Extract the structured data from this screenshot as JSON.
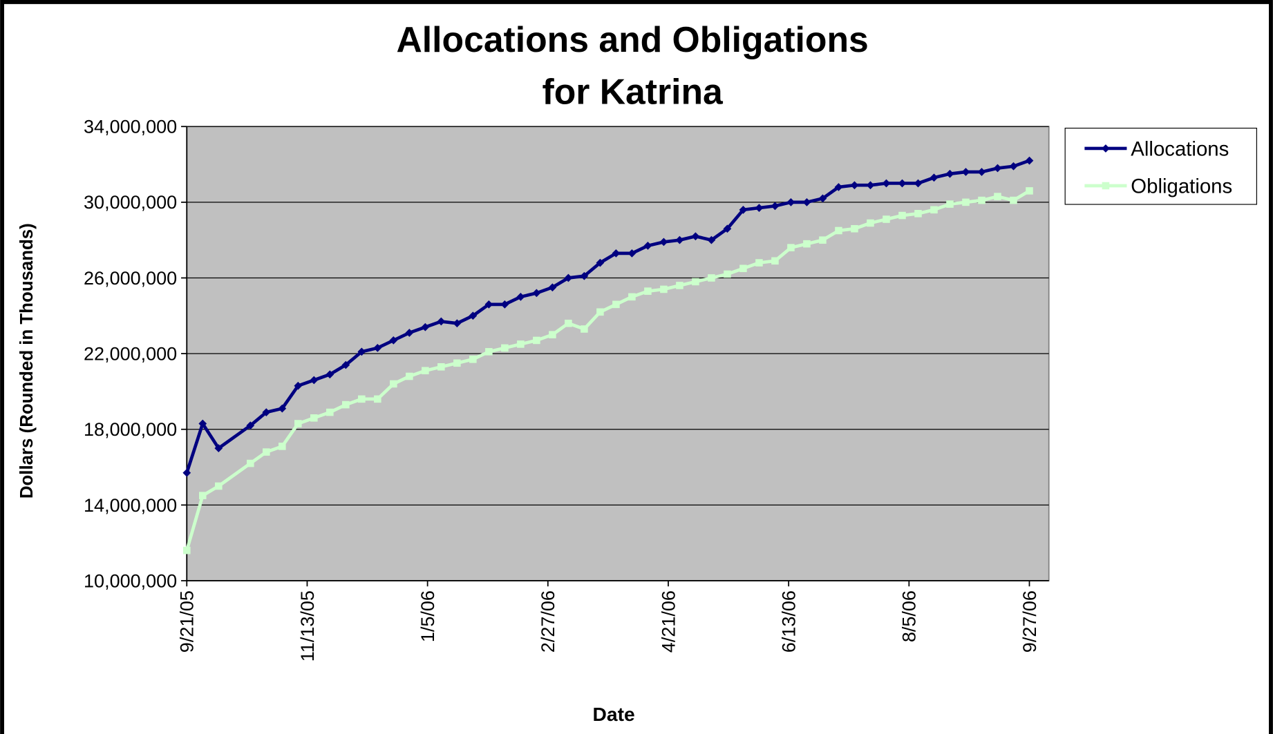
{
  "chart_data": {
    "type": "line",
    "title": [
      "Allocations and Obligations",
      "for Katrina"
    ],
    "xlabel": "Date",
    "ylabel": "Dollars (Rounded in Thousands)",
    "x": [
      "9/21/05",
      "9/28/05",
      "10/5/05",
      "10/19/05",
      "10/26/05",
      "11/2/05",
      "11/9/05",
      "11/16/05",
      "11/23/05",
      "11/30/05",
      "12/7/05",
      "12/14/05",
      "12/21/05",
      "12/28/05",
      "1/4/06",
      "1/11/06",
      "1/18/06",
      "1/25/06",
      "2/1/06",
      "2/8/06",
      "2/15/06",
      "2/22/06",
      "3/1/06",
      "3/8/06",
      "3/15/06",
      "3/22/06",
      "3/29/06",
      "4/5/06",
      "4/12/06",
      "4/19/06",
      "4/26/06",
      "5/3/06",
      "5/10/06",
      "5/17/06",
      "5/24/06",
      "5/31/06",
      "6/7/06",
      "6/14/06",
      "6/21/06",
      "6/28/06",
      "7/5/06",
      "7/12/06",
      "7/19/06",
      "7/26/06",
      "8/2/06",
      "8/9/06",
      "8/16/06",
      "8/23/06",
      "8/30/06",
      "9/6/06",
      "9/13/06",
      "9/20/06",
      "9/27/06"
    ],
    "series": [
      {
        "name": "Allocations",
        "color": "#000080",
        "marker": "diamond",
        "values": [
          15700000,
          18300000,
          17000000,
          18200000,
          18900000,
          19100000,
          20300000,
          20600000,
          20900000,
          21400000,
          22100000,
          22300000,
          22700000,
          23100000,
          23400000,
          23700000,
          23600000,
          24000000,
          24600000,
          24600000,
          25000000,
          25200000,
          25500000,
          26000000,
          26100000,
          26800000,
          27300000,
          27300000,
          27700000,
          27900000,
          28000000,
          28200000,
          28000000,
          28600000,
          29600000,
          29700000,
          29800000,
          30000000,
          30000000,
          30200000,
          30800000,
          30900000,
          30900000,
          31000000,
          31000000,
          31000000,
          31300000,
          31500000,
          31600000,
          31600000,
          31800000,
          31900000,
          32200000
        ]
      },
      {
        "name": "Obligations",
        "color": "#ccffcc",
        "marker": "square",
        "values": [
          11600000,
          14500000,
          15000000,
          16200000,
          16800000,
          17100000,
          18300000,
          18600000,
          18900000,
          19300000,
          19600000,
          19600000,
          20400000,
          20800000,
          21100000,
          21300000,
          21500000,
          21700000,
          22100000,
          22300000,
          22500000,
          22700000,
          23000000,
          23600000,
          23300000,
          24200000,
          24600000,
          25000000,
          25300000,
          25400000,
          25600000,
          25800000,
          26000000,
          26200000,
          26500000,
          26800000,
          26900000,
          27600000,
          27800000,
          28000000,
          28500000,
          28600000,
          28900000,
          29100000,
          29300000,
          29400000,
          29600000,
          29900000,
          30000000,
          30100000,
          30300000,
          30100000,
          30600000
        ]
      }
    ],
    "xlim": [
      "9/21/05",
      "9/27/06"
    ],
    "xticks": [
      "9/21/05",
      "11/13/05",
      "1/5/06",
      "2/27/06",
      "4/21/06",
      "6/13/06",
      "8/5/06",
      "9/27/06"
    ],
    "ylim": [
      10000000,
      34000000
    ],
    "yticks": [
      {
        "value": 10000000,
        "label": "10,000,000"
      },
      {
        "value": 14000000,
        "label": "14,000,000"
      },
      {
        "value": 18000000,
        "label": "18,000,000"
      },
      {
        "value": 22000000,
        "label": "22,000,000"
      },
      {
        "value": 26000000,
        "label": "26,000,000"
      },
      {
        "value": 30000000,
        "label": "30,000,000"
      },
      {
        "value": 34000000,
        "label": "34,000,000"
      }
    ],
    "grid": true,
    "legend": "right",
    "plot_background": "#c0c0c0"
  }
}
